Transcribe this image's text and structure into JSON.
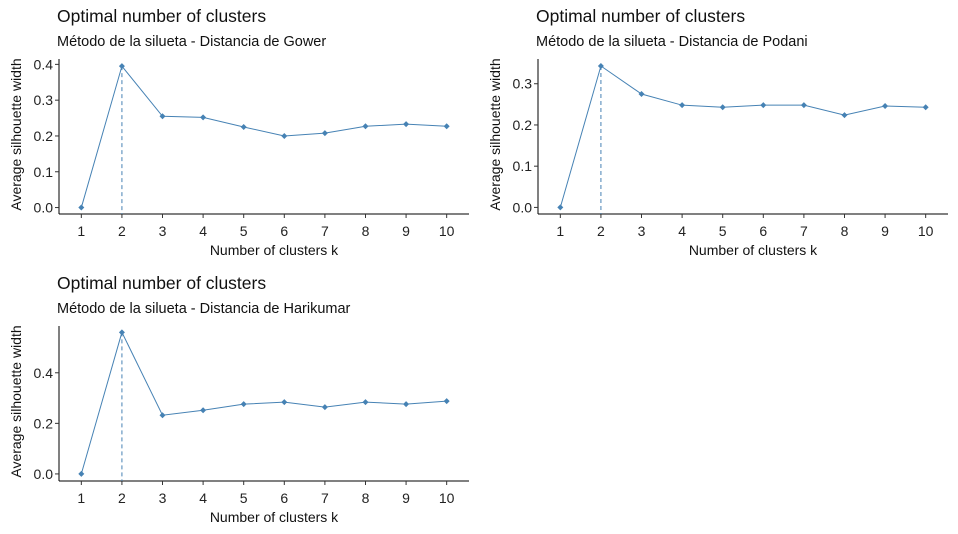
{
  "colors": {
    "series": "#4682B4",
    "axis": "#000000",
    "text": "#222222"
  },
  "chart_data": [
    {
      "type": "line",
      "title": "Optimal number of clusters",
      "subtitle": "Método de la silueta - Distancia de Gower",
      "xlabel": "Number of clusters k",
      "ylabel": "Average silhouette width",
      "x": [
        1,
        2,
        3,
        4,
        5,
        6,
        7,
        8,
        9,
        10
      ],
      "values": [
        0.0,
        0.395,
        0.255,
        0.252,
        0.225,
        0.2,
        0.208,
        0.227,
        0.233,
        0.227
      ],
      "yticks": [
        0.0,
        0.1,
        0.2,
        0.3,
        0.4
      ],
      "ytick_labels": [
        "0.0",
        "0.1",
        "0.2",
        "0.3",
        "0.4"
      ],
      "ylim": [
        -0.018,
        0.415
      ],
      "optimal_k": 2,
      "grid": false
    },
    {
      "type": "line",
      "title": "Optimal number of clusters",
      "subtitle": "Método de la silueta - Distancia de Podani",
      "xlabel": "Number of clusters k",
      "ylabel": "Average silhouette width",
      "x": [
        1,
        2,
        3,
        4,
        5,
        6,
        7,
        8,
        9,
        10
      ],
      "values": [
        0.0,
        0.343,
        0.275,
        0.248,
        0.243,
        0.248,
        0.248,
        0.224,
        0.246,
        0.243
      ],
      "yticks": [
        0.0,
        0.1,
        0.2,
        0.3
      ],
      "ytick_labels": [
        "0.0",
        "0.1",
        "0.2",
        "0.3"
      ],
      "ylim": [
        -0.016,
        0.36
      ],
      "optimal_k": 2,
      "grid": false
    },
    {
      "type": "line",
      "title": "Optimal number of clusters",
      "subtitle": "Método de la silueta - Distancia de Harikumar",
      "xlabel": "Number of clusters k",
      "ylabel": "Average silhouette width",
      "x": [
        1,
        2,
        3,
        4,
        5,
        6,
        7,
        8,
        9,
        10
      ],
      "values": [
        0.0,
        0.56,
        0.232,
        0.252,
        0.276,
        0.284,
        0.264,
        0.284,
        0.276,
        0.288
      ],
      "yticks": [
        0.0,
        0.2,
        0.4
      ],
      "ytick_labels": [
        "0.0",
        "0.2",
        "0.4"
      ],
      "ylim": [
        -0.028,
        0.585
      ],
      "optimal_k": 2,
      "grid": false
    }
  ]
}
